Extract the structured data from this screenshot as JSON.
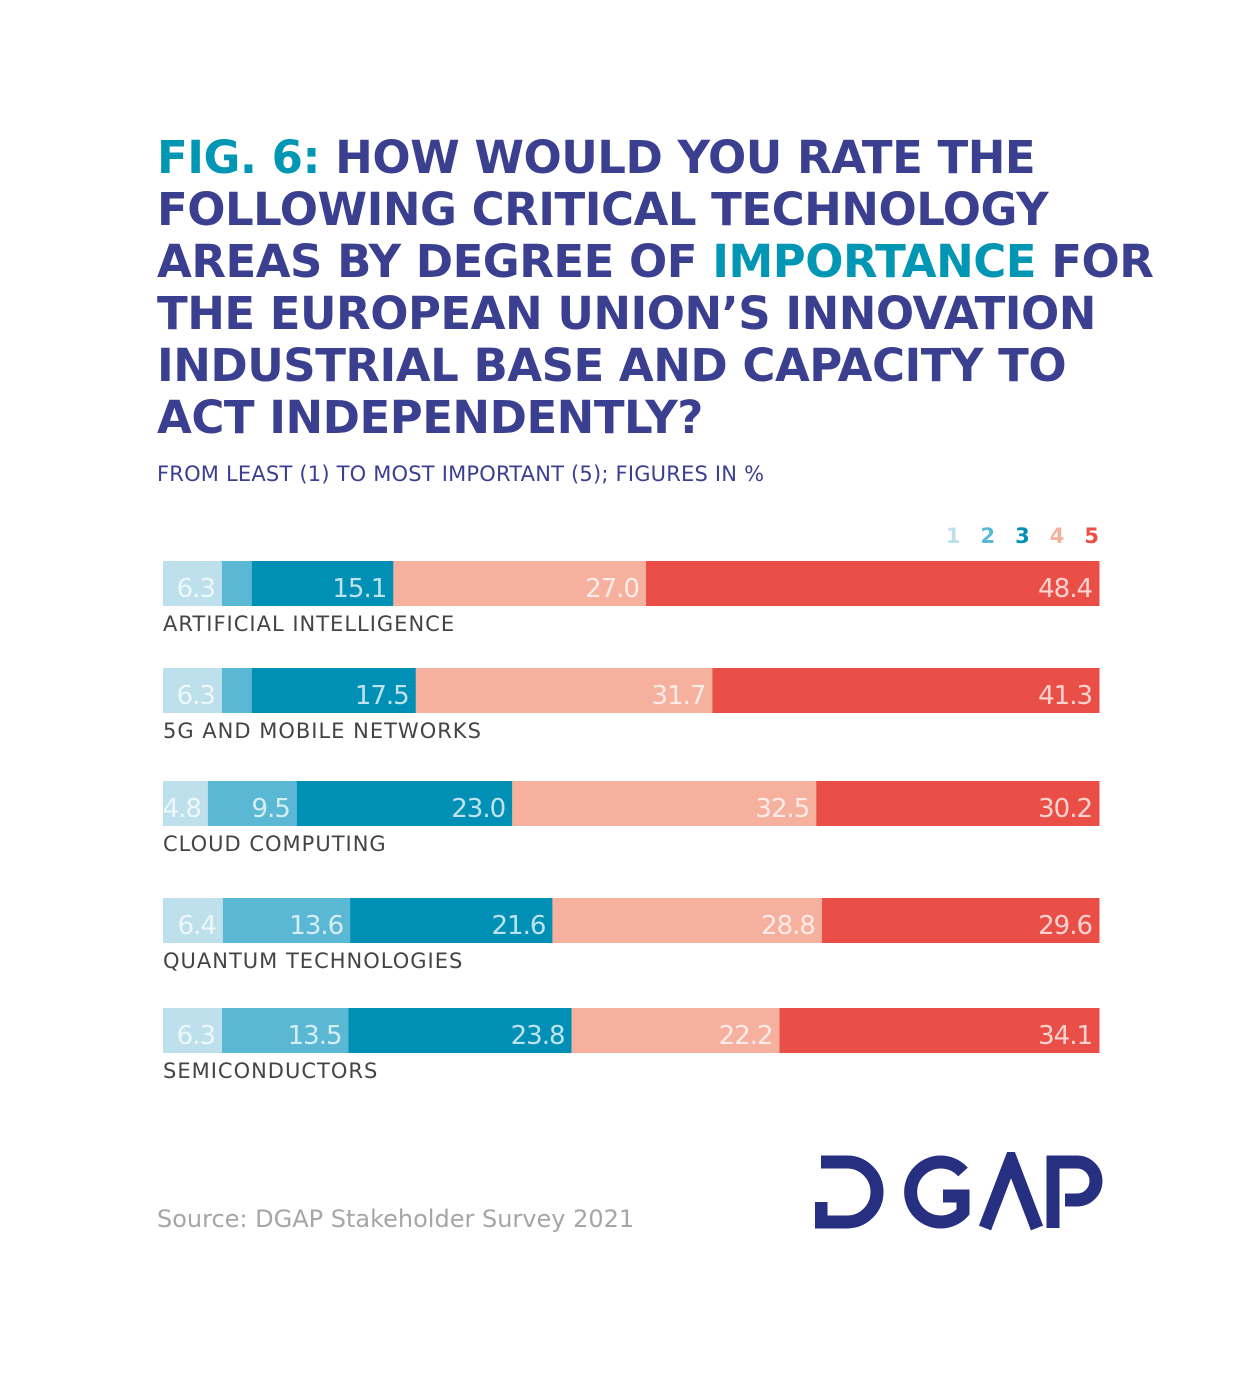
{
  "chart_data": {
    "type": "bar",
    "orientation": "horizontal-stacked",
    "title_parts": [
      {
        "text": "FIG. 6: ",
        "highlight": true
      },
      {
        "text": "HOW WOULD YOU RATE THE FOLLOWING CRITICAL TECHNOLOGY AREAS BY DEGREE OF ",
        "highlight": false
      },
      {
        "text": "IMPORTANCE",
        "highlight": true
      },
      {
        "text": " FOR THE EUROPEAN UNION’S INNO­VATION INDUSTRIAL BASE AND CAPACITY TO ACT INDEPENDENTLY?",
        "highlight": false
      }
    ],
    "subtitle": "FROM LEAST (1) TO MOST IMPORTANT (5); FIGURES IN %",
    "legend": [
      "1",
      "2",
      "3",
      "4",
      "5"
    ],
    "legend_placement": "top-right",
    "colors": [
      "#bde0ec",
      "#5bb8d4",
      "#0090b5",
      "#f6b09e",
      "#e94f46"
    ],
    "xlim": [
      0,
      100
    ],
    "grid": false,
    "categories": [
      "ARTIFICIAL INTELLIGENCE",
      "5G AND MOBILE NETWORKS",
      "CLOUD COMPUTING",
      "QUANTUM TECHNOLOGIES",
      "SEMICONDUCTORS"
    ],
    "series": [
      {
        "name": "1",
        "values": [
          6.3,
          6.3,
          4.8,
          6.4,
          6.3
        ],
        "labels": [
          "6.3",
          "6.3",
          "4.8",
          "6.4",
          "6.3"
        ]
      },
      {
        "name": "2",
        "values": [
          3.2,
          3.2,
          9.5,
          13.6,
          13.5
        ],
        "labels": [
          "",
          "",
          "9.5",
          "13.6",
          "13.5"
        ]
      },
      {
        "name": "3",
        "values": [
          15.1,
          17.5,
          23.0,
          21.6,
          23.8
        ],
        "labels": [
          "15.1",
          "17.5",
          "23.0",
          "21.6",
          "23.8"
        ]
      },
      {
        "name": "4",
        "values": [
          27.0,
          31.7,
          32.5,
          28.8,
          22.2
        ],
        "labels": [
          "27.0",
          "31.7",
          "32.5",
          "28.8",
          "22.2"
        ]
      },
      {
        "name": "5",
        "values": [
          48.4,
          41.3,
          30.2,
          29.6,
          34.1
        ],
        "labels": [
          "48.4",
          "41.3",
          "30.2",
          "29.6",
          "34.1"
        ]
      }
    ]
  },
  "source": "Source: DGAP Stakeholder Survey 2021",
  "logo": {
    "text": "DGAP",
    "color": "#262f80"
  },
  "title_colors": {
    "main": "#3b3f8f",
    "highlight": "#0096b4"
  }
}
